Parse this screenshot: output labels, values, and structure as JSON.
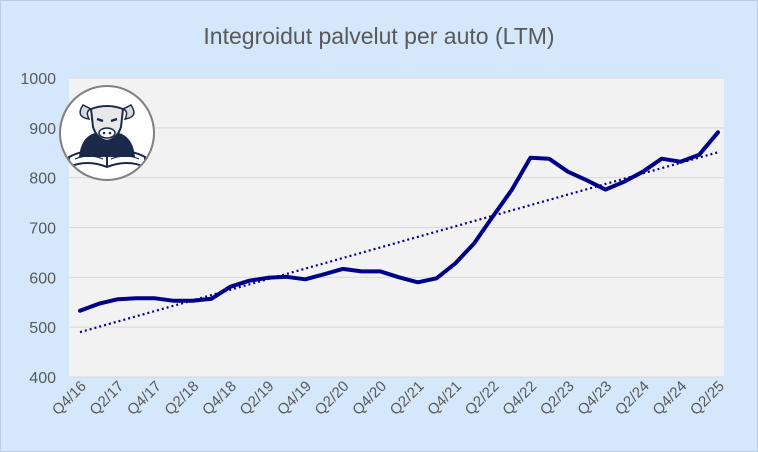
{
  "chart_data": {
    "type": "line",
    "title": "Integroidut palvelut per auto (LTM)",
    "xlabel": "",
    "ylabel": "",
    "ylim": [
      400,
      1000
    ],
    "y_ticks": [
      400,
      500,
      600,
      700,
      800,
      900,
      1000
    ],
    "x": [
      "Q4/16",
      "Q1/17",
      "Q2/17",
      "Q3/17",
      "Q4/17",
      "Q1/18",
      "Q2/18",
      "Q3/18",
      "Q4/18",
      "Q1/19",
      "Q2/19",
      "Q3/19",
      "Q4/19",
      "Q1/20",
      "Q2/20",
      "Q3/20",
      "Q4/20",
      "Q1/21",
      "Q2/21",
      "Q3/21",
      "Q4/21",
      "Q1/22",
      "Q2/22",
      "Q3/22",
      "Q4/22",
      "Q1/23",
      "Q2/23",
      "Q3/23",
      "Q4/23",
      "Q1/24",
      "Q2/24",
      "Q3/24",
      "Q4/24",
      "Q1/25",
      "Q2/25"
    ],
    "x_tick_labels": [
      "Q4/16",
      "Q2/17",
      "Q4/17",
      "Q2/18",
      "Q4/18",
      "Q2/19",
      "Q4/19",
      "Q2/20",
      "Q4/20",
      "Q2/21",
      "Q4/21",
      "Q2/22",
      "Q4/22",
      "Q2/23",
      "Q4/23",
      "Q2/24",
      "Q4/24",
      "Q2/25"
    ],
    "series": [
      {
        "values": [
          533,
          547,
          556,
          558,
          558,
          553,
          553,
          557,
          581,
          593,
          599,
          601,
          596,
          606,
          617,
          612,
          612,
          600,
          590,
          598,
          628,
          668,
          722,
          775,
          840,
          838,
          812,
          795,
          776,
          792,
          812,
          838,
          832,
          846,
          891
        ],
        "color": "#00008b",
        "style": "solid"
      },
      {
        "type": "trendline",
        "start": 490,
        "end": 851,
        "color": "#00008b",
        "style": "dotted"
      }
    ],
    "grid": true,
    "legend": "none",
    "colors": {
      "background": "#d5e8fb",
      "plot_area": "#f2f2f2",
      "gridline": "#d9d9d9",
      "text": "#595959"
    }
  }
}
